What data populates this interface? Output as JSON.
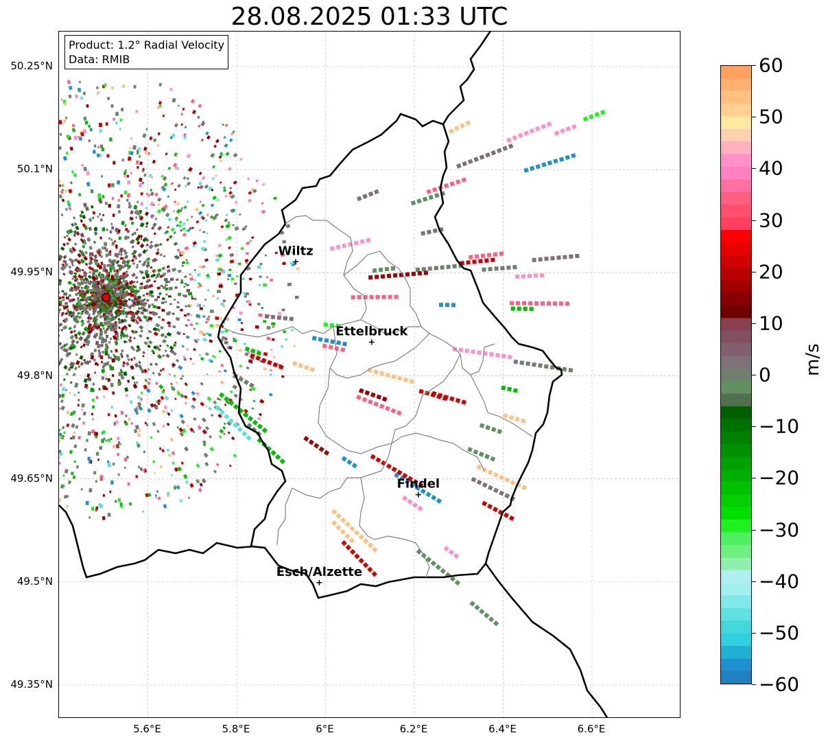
{
  "title": "28.08.2025 01:33 UTC",
  "info": {
    "product": "Product: 1.2° Radial Velocity",
    "data_source": "Data: RMIB"
  },
  "axes": {
    "lat_labels": [
      "50.25°N",
      "50.1°N",
      "49.95°N",
      "49.8°N",
      "49.65°N",
      "49.5°N",
      "49.35°N"
    ],
    "lon_labels": [
      "5.6°E",
      "5.8°E",
      "6°E",
      "6.2°E",
      "6.4°E",
      "6.6°E"
    ],
    "lat_values": [
      50.25,
      50.1,
      49.95,
      49.8,
      49.65,
      49.5,
      49.35
    ],
    "lon_values": [
      5.6,
      5.8,
      6.0,
      6.2,
      6.4,
      6.6
    ],
    "gridlines": true
  },
  "cities": [
    {
      "name": "Wiltz",
      "lat": 49.966,
      "lon": 5.933
    },
    {
      "name": "Ettelbruck",
      "lat": 49.849,
      "lon": 6.104
    },
    {
      "name": "Findel",
      "lat": 49.627,
      "lon": 6.209
    },
    {
      "name": "Esch/Alzette",
      "lat": 49.499,
      "lon": 5.986
    }
  ],
  "radar": {
    "lat": 49.914,
    "lon": 5.506,
    "color": "#e00000"
  },
  "colorbar": {
    "unit": "m/s",
    "min": -60,
    "max": 60,
    "tick_labels": [
      "60",
      "50",
      "40",
      "30",
      "20",
      "10",
      "0",
      "−10",
      "−20",
      "−30",
      "−40",
      "−50",
      "−60"
    ],
    "tick_values": [
      60,
      50,
      40,
      30,
      20,
      10,
      0,
      -10,
      -20,
      -30,
      -40,
      -50,
      -60
    ],
    "colors_top_to_bottom": [
      "#ffa060",
      "#ffb070",
      "#ffc080",
      "#ffd090",
      "#ffe8a0",
      "#ffd0b0",
      "#ffb0c0",
      "#ff90c8",
      "#ff80c0",
      "#ff70a0",
      "#ff6080",
      "#ff5070",
      "#ff4060",
      "#ff0000",
      "#e80000",
      "#d00000",
      "#b80000",
      "#a00000",
      "#880000",
      "#700000",
      "#884050",
      "#805060",
      "#806070",
      "#807078",
      "#708070",
      "#609060",
      "#507050",
      "#006000",
      "#007000",
      "#008000",
      "#009000",
      "#00a000",
      "#00b000",
      "#00c000",
      "#00d000",
      "#00e000",
      "#20f020",
      "#50f060",
      "#70f080",
      "#90f0b0",
      "#b0f0f0",
      "#a0f0f0",
      "#80e8e8",
      "#60e0e0",
      "#40d8d8",
      "#30d0e0",
      "#20b0d0",
      "#2090d0",
      "#2080c0"
    ]
  }
}
